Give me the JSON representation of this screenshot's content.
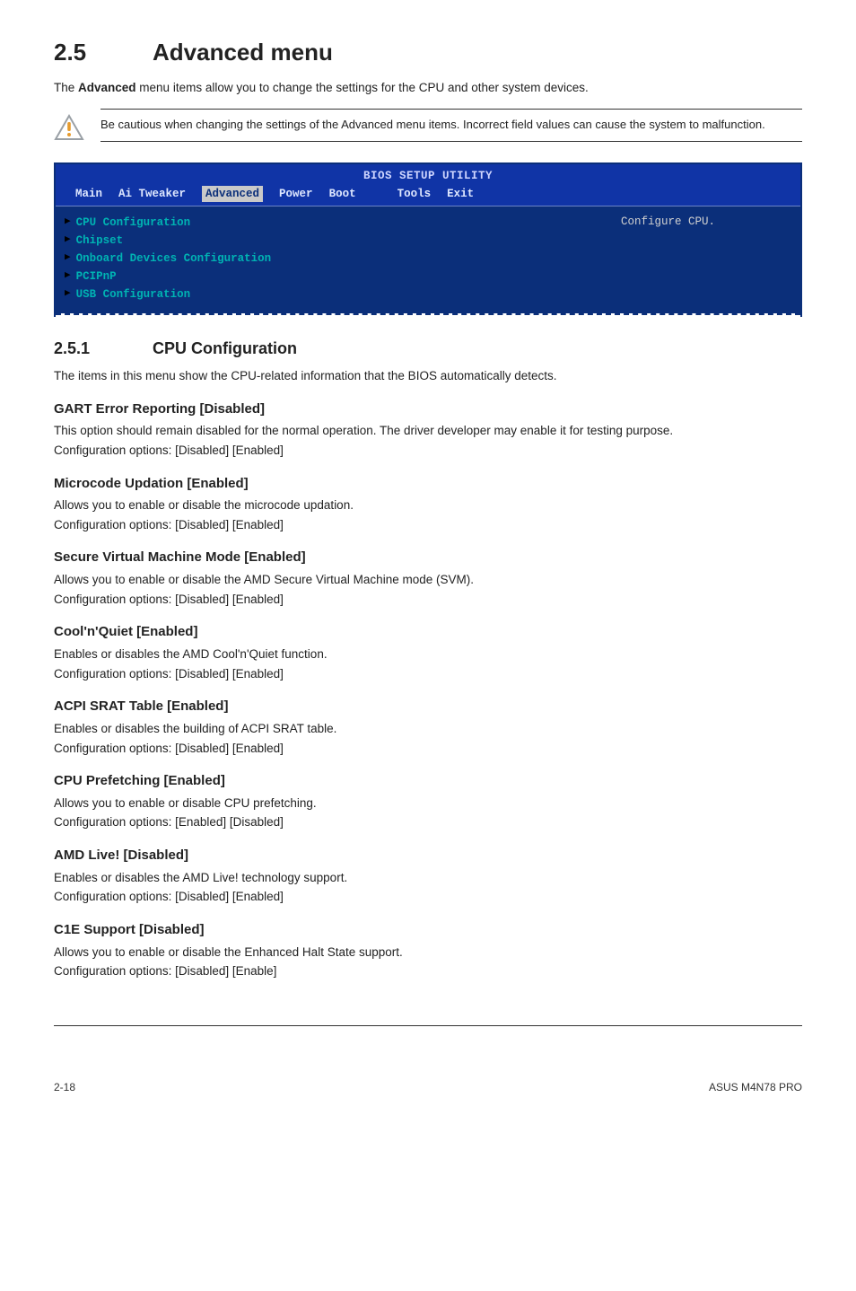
{
  "page": {
    "section_number": "2.5",
    "section_title": "Advanced menu",
    "intro": "The Advanced menu items allow you to change the settings for the CPU and other system devices.",
    "intro_bold_word": "Advanced",
    "callout": "Be cautious when changing the settings of the Advanced menu items. Incorrect field values can cause the system to malfunction."
  },
  "bios": {
    "title": "BIOS SETUP UTILITY",
    "tabs": [
      "Main",
      "Ai Tweaker",
      "Advanced",
      "Power",
      "Boot",
      "Tools",
      "Exit"
    ],
    "active_tab_index": 2,
    "menu_items": [
      "CPU Configuration",
      "Chipset",
      "Onboard Devices Configuration",
      "PCIPnP",
      "USB Configuration"
    ],
    "help_text": "Configure CPU.",
    "colors": {
      "bg": "#1034a6",
      "body_bg": "#0b2f7a",
      "menu_text": "#00b3b3",
      "help_text": "#d0d0d0",
      "tab_text": "#dfe8ff",
      "active_tab_bg": "#c9c9c9",
      "active_tab_text": "#0b2f7a"
    }
  },
  "subsection": {
    "number": "2.5.1",
    "title": "CPU Configuration",
    "desc": "The items in this menu show the CPU-related information that the BIOS automatically detects."
  },
  "settings": [
    {
      "title": "GART Error Reporting [Disabled]",
      "lines": [
        "This option should remain disabled for the normal operation. The driver developer may enable it for testing purpose.",
        "Configuration options: [Disabled] [Enabled]"
      ]
    },
    {
      "title": "Microcode Updation [Enabled]",
      "lines": [
        "Allows you to enable or disable the microcode updation.",
        "Configuration options: [Disabled] [Enabled]"
      ]
    },
    {
      "title": "Secure Virtual Machine Mode [Enabled]",
      "lines": [
        "Allows you to enable or disable the AMD Secure Virtual Machine mode (SVM).",
        "Configuration options: [Disabled] [Enabled]"
      ]
    },
    {
      "title": "Cool'n'Quiet [Enabled]",
      "lines": [
        "Enables or disables the AMD Cool'n'Quiet function.",
        "Configuration options: [Disabled] [Enabled]"
      ]
    },
    {
      "title": "ACPI SRAT Table [Enabled]",
      "lines": [
        "Enables or disables the building of ACPI SRAT table.",
        "Configuration options: [Disabled] [Enabled]"
      ]
    },
    {
      "title": "CPU Prefetching [Enabled]",
      "lines": [
        "Allows you to enable or disable CPU prefetching.",
        "Configuration options: [Enabled] [Disabled]"
      ]
    },
    {
      "title": "AMD Live! [Disabled]",
      "lines": [
        "Enables or disables the AMD Live! technology support.",
        "Configuration options: [Disabled] [Enabled]"
      ]
    },
    {
      "title": "C1E Support [Disabled]",
      "lines": [
        "Allows you to enable or disable the Enhanced Halt State support.",
        "Configuration options: [Disabled] [Enable]"
      ]
    }
  ],
  "footer": {
    "left": "2-18",
    "right": "ASUS M4N78 PRO"
  }
}
